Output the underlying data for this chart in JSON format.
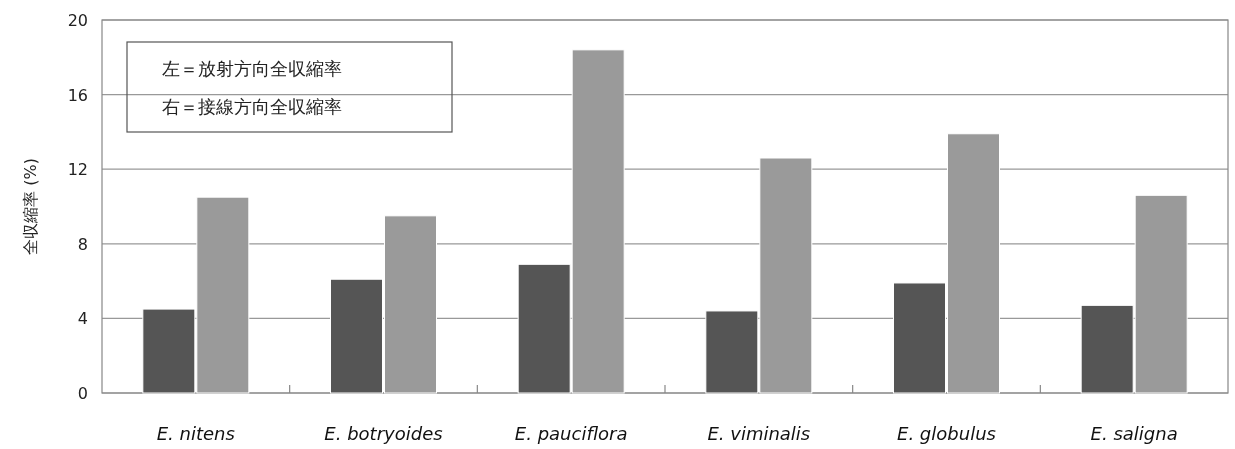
{
  "chart_data": {
    "type": "bar",
    "ylabel": "全収縮率 (%)",
    "categories": [
      "E. nitens",
      "E. botryoides",
      "E. pauciflora",
      "E. viminalis",
      "E. globulus",
      "E. saligna"
    ],
    "series": [
      {
        "color": "#555555",
        "values": [
          4.5,
          6.1,
          6.9,
          4.4,
          5.9,
          4.7
        ]
      },
      {
        "color": "#9a9a9a",
        "values": [
          10.5,
          9.5,
          18.4,
          12.6,
          13.9,
          10.6
        ]
      }
    ],
    "ylim": [
      0,
      20
    ],
    "yticks": [
      0,
      4,
      8,
      12,
      16,
      20
    ],
    "grid": "y",
    "annotations": [
      "左＝放射方向全収縮率",
      "右＝接線方向全収縮率"
    ]
  }
}
